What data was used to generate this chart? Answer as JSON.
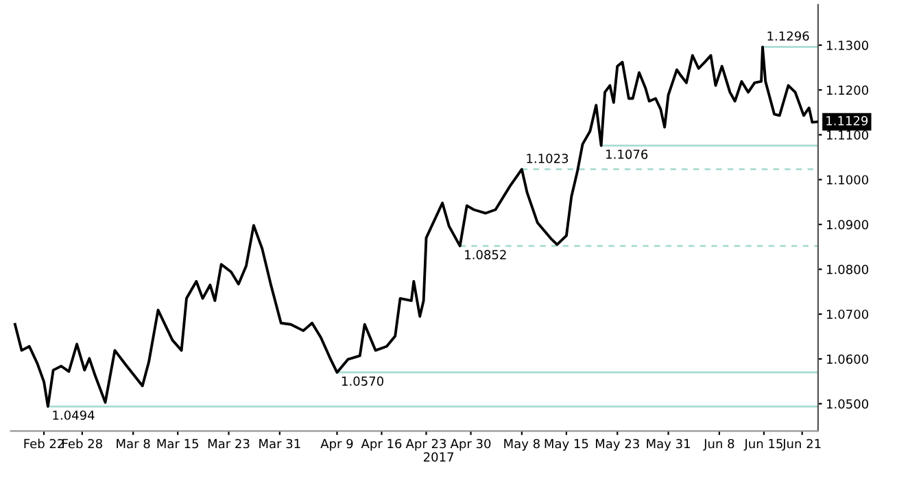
{
  "chart_data": {
    "type": "line",
    "x": [
      "2017-02-17T11:00",
      "2017-02-18T12:00",
      "2017-02-19T17:00",
      "2017-02-20T23:00",
      "2017-02-22T00:00",
      "2017-02-22T15:00",
      "2017-02-23T11:00",
      "2017-02-24T17:00",
      "2017-02-25T22:00",
      "2017-02-27T04:00",
      "2017-02-28T09:00",
      "2017-03-01T03:00",
      "2017-03-02T02:00",
      "2017-03-03T15:00",
      "2017-03-05T03:00",
      "2017-03-06T20:00",
      "2017-03-09T11:00",
      "2017-03-10T11:00",
      "2017-03-11T22:00",
      "2017-03-14T04:00",
      "2017-03-15T14:00",
      "2017-03-16T09:00",
      "2017-03-17T22:00",
      "2017-03-18T22:00",
      "2017-03-20T02:00",
      "2017-03-20T20:00",
      "2017-03-21T20:00",
      "2017-03-23T09:00",
      "2017-03-24T13:00",
      "2017-03-25T18:00",
      "2017-03-26T22:00",
      "2017-03-28T06:00",
      "2017-03-29T15:00",
      "2017-03-31T05:00",
      "2017-04-01T18:00",
      "2017-04-03T17:00",
      "2017-04-05T02:00",
      "2017-04-06T11:00",
      "2017-04-08T00:00",
      "2017-04-09T00:00",
      "2017-04-10T17:00",
      "2017-04-12T14:00",
      "2017-04-13T08:00",
      "2017-04-15T01:00",
      "2017-04-16T19:00",
      "2017-04-18T03:00",
      "2017-04-18T22:00",
      "2017-04-20T16:00",
      "2017-04-21T01:00",
      "2017-04-22T00:00",
      "2017-04-22T14:00",
      "2017-04-23T00:00",
      "2017-04-25T13:00",
      "2017-04-26T14:00",
      "2017-04-28T07:00",
      "2017-04-29T09:00",
      "2017-04-30T11:00",
      "2017-05-02T07:00",
      "2017-05-03T21:00",
      "2017-05-06T04:00",
      "2017-05-08T00:00",
      "2017-05-08T20:00",
      "2017-05-10T11:00",
      "2017-05-12T13:00",
      "2017-05-13T13:00",
      "2017-05-15T00:00",
      "2017-05-15T19:00",
      "2017-05-16T18:00",
      "2017-05-17T13:00",
      "2017-05-18T17:00",
      "2017-05-19T16:00",
      "2017-05-20T11:00",
      "2017-05-21T01:00",
      "2017-05-21T20:00",
      "2017-05-22T10:00",
      "2017-05-23T00:00",
      "2017-05-23T19:00",
      "2017-05-24T19:00",
      "2017-05-25T10:00",
      "2017-05-26T10:00",
      "2017-05-27T10:00",
      "2017-05-28T00:00",
      "2017-05-29T00:00",
      "2017-05-29T19:00",
      "2017-05-30T10:00",
      "2017-05-31T00:00",
      "2017-06-01T08:00",
      "2017-06-01T22:00",
      "2017-06-02T20:00",
      "2017-06-03T19:00",
      "2017-06-04T18:00",
      "2017-06-05T17:00",
      "2017-06-06T16:00",
      "2017-06-07T10:00",
      "2017-06-08T10:00",
      "2017-06-09T01:00",
      "2017-06-09T16:00",
      "2017-06-10T11:00",
      "2017-06-11T12:00",
      "2017-06-12T13:00",
      "2017-06-13T13:00",
      "2017-06-14T14:00",
      "2017-06-14T19:00",
      "2017-06-15T06:00",
      "2017-06-16T15:00",
      "2017-06-17T11:00",
      "2017-06-18T20:00",
      "2017-06-19T22:00",
      "2017-06-21T06:00",
      "2017-06-22T02:00",
      "2017-06-22T14:00",
      "2017-06-23T10:00"
    ],
    "series": [
      {
        "color": "#000000",
        "values": [
          1.0677,
          1.0619,
          1.0628,
          1.059,
          1.0549,
          1.0494,
          1.0575,
          1.0584,
          1.0572,
          1.0633,
          1.0575,
          1.0601,
          1.0561,
          1.0503,
          1.0619,
          1.0587,
          1.054,
          1.0593,
          1.0709,
          1.0642,
          1.0619,
          1.0735,
          1.0773,
          1.0735,
          1.0765,
          1.073,
          1.0811,
          1.0794,
          1.0767,
          1.0808,
          1.0898,
          1.0846,
          1.0765,
          1.068,
          1.0677,
          1.0663,
          1.068,
          1.0648,
          1.0599,
          1.057,
          1.0599,
          1.0607,
          1.0677,
          1.0619,
          1.0628,
          1.0651,
          1.0735,
          1.073,
          1.0773,
          1.0695,
          1.073,
          1.087,
          1.0948,
          1.0896,
          1.0852,
          1.0942,
          1.0933,
          1.0925,
          1.0933,
          1.0986,
          1.1023,
          1.0971,
          1.0904,
          1.0869,
          1.0855,
          1.0875,
          1.0962,
          1.102,
          1.1079,
          1.1108,
          1.1166,
          1.1076,
          1.1195,
          1.121,
          1.1172,
          1.1253,
          1.1262,
          1.1181,
          1.1181,
          1.1239,
          1.1204,
          1.1175,
          1.1181,
          1.1157,
          1.1117,
          1.1189,
          1.1245,
          1.1233,
          1.1216,
          1.1277,
          1.1248,
          1.1262,
          1.1277,
          1.121,
          1.1253,
          1.1224,
          1.1195,
          1.1175,
          1.1219,
          1.1195,
          1.1216,
          1.1219,
          1.1296,
          1.1219,
          1.1146,
          1.1143,
          1.121,
          1.1195,
          1.1143,
          1.116,
          1.1128,
          1.1129
        ]
      }
    ],
    "xlim": [
      "2017-02-16T19:00",
      "2017-06-23T12:00"
    ],
    "xticks": [
      {
        "value": "2017-02-22",
        "label": "Feb 22"
      },
      {
        "value": "2017-02-28",
        "label": "Feb 28"
      },
      {
        "value": "2017-03-08",
        "label": "Mar 8"
      },
      {
        "value": "2017-03-15",
        "label": "Mar 15"
      },
      {
        "value": "2017-03-23",
        "label": "Mar 23"
      },
      {
        "value": "2017-03-31",
        "label": "Mar 31"
      },
      {
        "value": "2017-04-09",
        "label": "Apr 9"
      },
      {
        "value": "2017-04-16",
        "label": "Apr 16"
      },
      {
        "value": "2017-04-23",
        "label": "Apr 23"
      },
      {
        "value": "2017-04-30",
        "label": "Apr 30"
      },
      {
        "value": "2017-05-08",
        "label": "May 8"
      },
      {
        "value": "2017-05-15",
        "label": "May 15"
      },
      {
        "value": "2017-05-23",
        "label": "May 23"
      },
      {
        "value": "2017-05-31",
        "label": "May 31"
      },
      {
        "value": "2017-06-08",
        "label": "Jun 8"
      },
      {
        "value": "2017-06-15",
        "label": "Jun 15"
      },
      {
        "value": "2017-06-21",
        "label": "Jun 21"
      }
    ],
    "ylim": [
      1.0439,
      1.139
    ],
    "yticks": [
      {
        "value": 1.05,
        "label": "1.0500"
      },
      {
        "value": 1.06,
        "label": "1.0600"
      },
      {
        "value": 1.07,
        "label": "1.0700"
      },
      {
        "value": 1.08,
        "label": "1.0800"
      },
      {
        "value": 1.09,
        "label": "1.0900"
      },
      {
        "value": 1.1,
        "label": "1.1000"
      },
      {
        "value": 1.11,
        "label": "1.1100"
      },
      {
        "value": 1.12,
        "label": "1.1200"
      },
      {
        "value": 1.13,
        "label": "1.1300"
      }
    ],
    "ref_lines": [
      {
        "axis": "y",
        "value": 1.0494,
        "label": "1.0494",
        "color": "#a8dcd2",
        "line_style": "solid"
      },
      {
        "axis": "y",
        "value": 1.057,
        "label": "1.0570",
        "color": "#a8dcd2",
        "line_style": "solid"
      },
      {
        "axis": "y",
        "value": 1.0852,
        "label": "1.0852",
        "color": "#a8dcd2",
        "line_style": "dashed"
      },
      {
        "axis": "y",
        "value": 1.1023,
        "label": "1.1023",
        "color": "#a8dcd2",
        "line_style": "dashed"
      },
      {
        "axis": "y",
        "value": 1.1076,
        "label": "1.1076",
        "color": "#a8dcd2",
        "line_style": "solid"
      },
      {
        "axis": "y",
        "value": 1.1296,
        "label": "1.1296",
        "color": "#a8dcd2",
        "line_style": "solid"
      }
    ],
    "annotations": [
      "2017",
      {
        "text": "1.1129",
        "x": "2017-06-23T10:00",
        "y": 1.1129
      }
    ],
    "grid": false,
    "legend": false,
    "marker": "none",
    "line_style": "solid"
  }
}
